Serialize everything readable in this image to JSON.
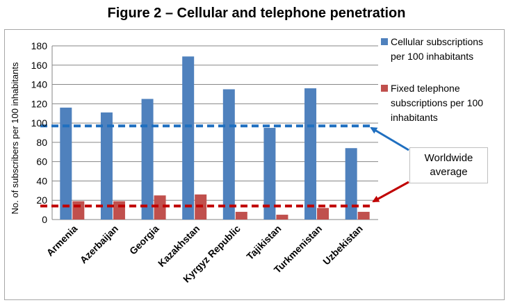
{
  "title": "Figure 2 – Cellular and telephone penetration",
  "annotation": {
    "line1": "Worldwide",
    "line2": "average"
  },
  "colors": {
    "cellular": "#4f81bd",
    "fixed": "#c0504d",
    "cellular_avg": "#1f6fc0",
    "fixed_avg": "#c00000",
    "grid": "#868686"
  },
  "chart_data": {
    "type": "bar",
    "title": "Figure 2 – Cellular and telephone penetration",
    "xlabel": "",
    "ylabel": "No. of subscribers per 100 inhabitants",
    "ylim": [
      0,
      180
    ],
    "yticks": [
      0,
      20,
      40,
      60,
      80,
      100,
      120,
      140,
      160,
      180
    ],
    "categories": [
      "Armenia",
      "Azerbaijan",
      "Georgia",
      "Kazakhstan",
      "Kyrgyz Republic",
      "Tajikistan",
      "Turkmenistan",
      "Uzbekistan"
    ],
    "series": [
      {
        "name": "Cellular subscriptions per 100 inhabitants",
        "values": [
          116,
          111,
          125,
          169,
          135,
          95,
          136,
          74
        ]
      },
      {
        "name": "Fixed telephone subscriptions per 100 inhabitants",
        "values": [
          19,
          19,
          25,
          26,
          8,
          5,
          12,
          8
        ]
      }
    ],
    "legend": {
      "position": "right",
      "lines": [
        [
          "Cellular subscriptions",
          "per 100 inhabitants"
        ],
        [
          "Fixed telephone",
          "subscriptions per 100",
          "inhabitants"
        ]
      ]
    },
    "reference_lines": [
      {
        "series": "Cellular subscriptions per 100 inhabitants",
        "value": 97,
        "style": "dashed"
      },
      {
        "series": "Fixed telephone subscriptions per 100 inhabitants",
        "value": 14,
        "style": "dashed"
      }
    ],
    "grid": true
  }
}
